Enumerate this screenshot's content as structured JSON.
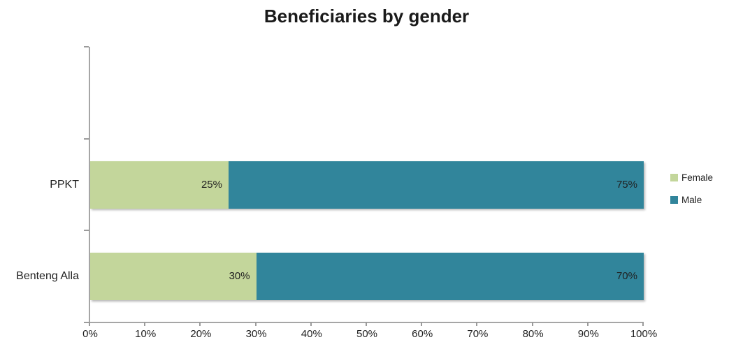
{
  "chart_data": {
    "type": "bar",
    "orientation": "horizontal",
    "stacked": true,
    "title": "Beneficiaries by gender",
    "categories": [
      "PPKT",
      "Benteng Alla"
    ],
    "series": [
      {
        "name": "Female",
        "color": "#C3D69B",
        "values": [
          25,
          30
        ],
        "data_labels": [
          "25%",
          "30%"
        ]
      },
      {
        "name": "Male",
        "color": "#31859B",
        "values": [
          75,
          70
        ],
        "data_labels": [
          "75%",
          "70%"
        ]
      }
    ],
    "x_axis": {
      "min": 0,
      "max": 100,
      "tick_step": 10,
      "tick_labels": [
        "0%",
        "10%",
        "20%",
        "30%",
        "40%",
        "50%",
        "60%",
        "70%",
        "80%",
        "90%",
        "100%"
      ]
    },
    "legend": {
      "position": "right",
      "entries": [
        "Female",
        "Male"
      ]
    },
    "grid": "off"
  },
  "colors": {
    "axis": "#A6A6A6",
    "tick": "#9B9B9B",
    "text": "#1F1F1F",
    "title": "#1A1A1A"
  }
}
